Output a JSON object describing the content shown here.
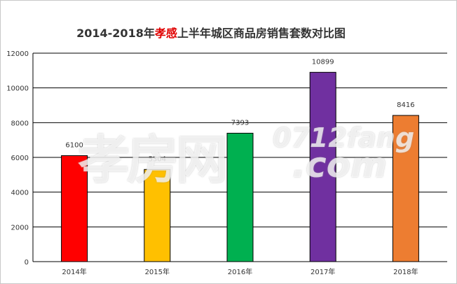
{
  "header": {
    "title_part1": "2014-2018年",
    "title_highlight": "孝感",
    "title_part2": "上半年城区商品房销售套数对比图",
    "highlight_color": "#e00000"
  },
  "watermark": {
    "chinese": "孝房网",
    "line1": "0712fang",
    "line2": ".com"
  },
  "chart_data": {
    "type": "bar",
    "title": "2014-2018年孝感上半年城区商品房销售套数对比图",
    "categories": [
      "2014年",
      "2015年",
      "2016年",
      "2017年",
      "2018年"
    ],
    "values": [
      6100,
      5304,
      7393,
      10899,
      8416
    ],
    "colors": [
      "#ff0000",
      "#ffc000",
      "#00b050",
      "#7030a0",
      "#ed7d31"
    ],
    "xlabel": "",
    "ylabel": "",
    "ylim": [
      0,
      12000
    ],
    "yticks": [
      0,
      2000,
      4000,
      6000,
      8000,
      10000,
      12000
    ],
    "grid": true,
    "data_labels": true
  }
}
